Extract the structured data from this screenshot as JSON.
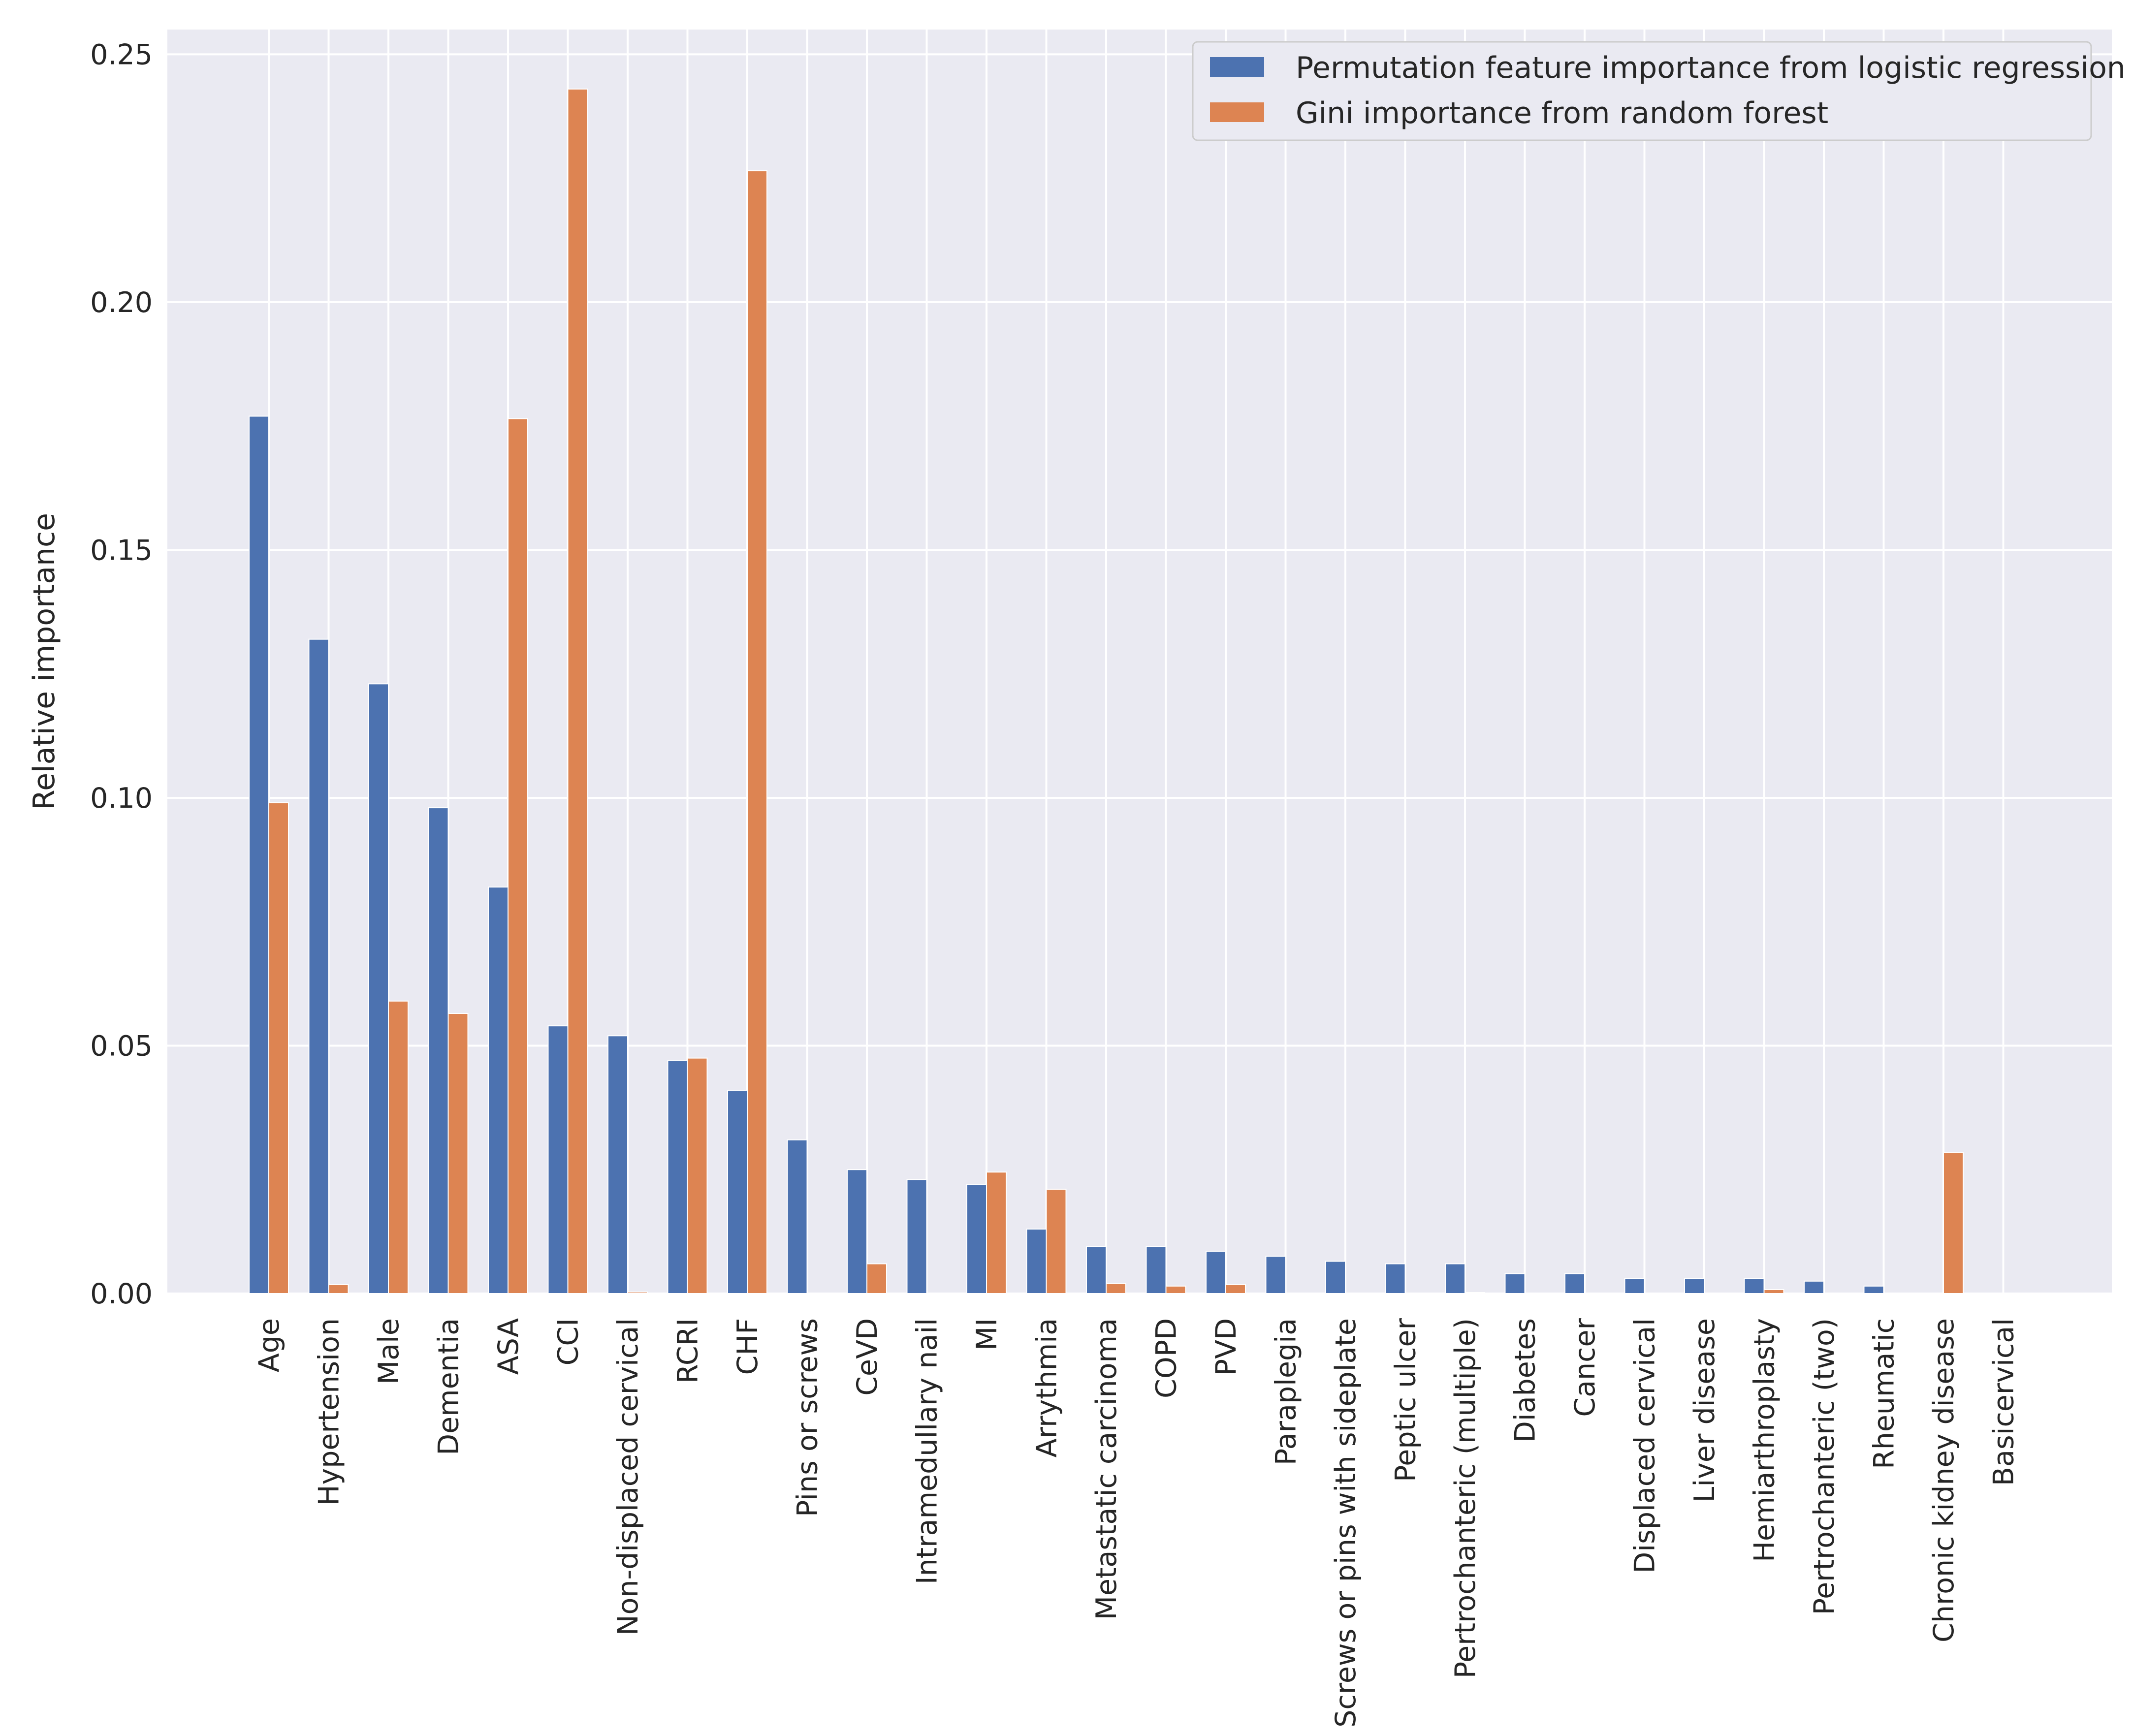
{
  "chart_data": {
    "type": "bar",
    "title": "",
    "xlabel": "",
    "ylabel": "Relative importance",
    "ylim": [
      0,
      0.255
    ],
    "yticks": [
      "0.00",
      "0.05",
      "0.10",
      "0.15",
      "0.20",
      "0.25"
    ],
    "grid": true,
    "legend_position": "top-right",
    "categories": [
      "Age",
      "Hypertension",
      "Male",
      "Dementia",
      "ASA",
      "CCI",
      "Non-displaced cervical",
      "RCRI",
      "CHF",
      "Pins or screws",
      "CeVD",
      "Intramedullary nail",
      "MI",
      "Arrythmia",
      "Metastatic carcinoma",
      "COPD",
      "PVD",
      "Paraplegia",
      "Screws or pins with sideplate",
      "Peptic ulcer",
      "Pertrochanteric (multiple)",
      "Diabetes",
      "Cancer",
      "Displaced cervical",
      "Liver disease",
      "Hemiarthroplasty",
      "Pertrochanteric (two)",
      "Rheumatic",
      "Chronic kidney disease",
      "Basicervical"
    ],
    "series": [
      {
        "name": "Permutation feature importance from logistic regression",
        "color": "#4c72b0",
        "values": [
          0.177,
          0.132,
          0.123,
          0.098,
          0.082,
          0.054,
          0.052,
          0.047,
          0.041,
          0.031,
          0.025,
          0.023,
          0.022,
          0.013,
          0.0095,
          0.0095,
          0.0085,
          0.0075,
          0.0065,
          0.006,
          0.006,
          0.004,
          0.004,
          0.003,
          0.003,
          0.003,
          0.0025,
          0.0015,
          0.0,
          0.0
        ]
      },
      {
        "name": "Gini importance from random forest",
        "color": "#dd8452",
        "values": [
          0.099,
          0.0018,
          0.059,
          0.0565,
          0.1765,
          0.243,
          0.0003,
          0.0475,
          0.2265,
          0.0,
          0.006,
          0.0,
          0.0245,
          0.021,
          0.002,
          0.0015,
          0.0018,
          0.0,
          0.0,
          0.0,
          0.0002,
          0.0,
          0.0,
          0.0,
          0.0,
          0.0008,
          0.0,
          0.0,
          0.0285,
          0.0
        ]
      }
    ]
  }
}
